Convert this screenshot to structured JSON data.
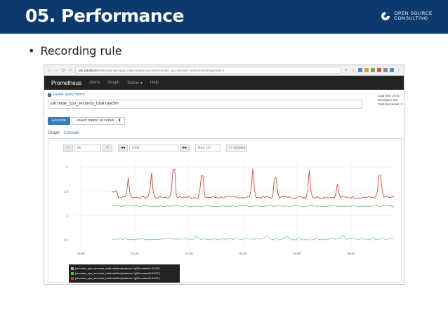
{
  "slide": {
    "title": "05. Performance",
    "logo_line1": "OPEN SOURCE",
    "logo_line2": "CONSULTING",
    "bullet_symbol": "•",
    "bullet_text": "Recording rule"
  },
  "browser": {
    "url_host": "192.168.88.26",
    "url_rest": ":9090/graph?g0.range_input=6h&g0.expr=job%3Anode_cpu_seconds_total%3Arate3m&g0.tab=0"
  },
  "navbar": {
    "brand": "Prometheus",
    "links": [
      "Alerts",
      "Graph",
      "Status ▾",
      "Help"
    ]
  },
  "query": {
    "history_label": "Enable query history",
    "expression": "job:node_cpu_seconds_total:rate3m",
    "stats": [
      "Load time: 27ms",
      "Resolution: 60s",
      "Total time series: 3"
    ],
    "execute_label": "Execute",
    "metric_select": "- insert metric at cursor -  ⬍"
  },
  "tabs": {
    "graph": "Graph",
    "console": "Console"
  },
  "controls": {
    "minus": "−",
    "range": "6h",
    "plus": "+",
    "back": "◂◂",
    "until_placeholder": "Until",
    "forward": "▸▸",
    "res_placeholder": "Res. (s)",
    "stacked_label": "☐ stacked"
  },
  "colors": {
    "red": "#c0392b",
    "green": "#5cb85c",
    "teal": "#76c7c0"
  },
  "chart_data": {
    "type": "line",
    "x_ticks": [
      "00:00",
      "01:00",
      "02:00",
      "03:00",
      "04:00",
      "05:00"
    ],
    "y_ticks": [
      "2",
      "1.5",
      "1",
      "0.5"
    ],
    "ylim": [
      0.3,
      2.15
    ],
    "series": [
      {
        "name": "job:node_cpu_seconds_total:rate3m{instance=\"yj26-cvstest2:9100\"}",
        "color": "#c0392b",
        "base": 1.38,
        "spikes": [
          [
            0.06,
            1.78
          ],
          [
            0.14,
            1.88
          ],
          [
            0.22,
            1.95
          ],
          [
            0.32,
            1.82
          ],
          [
            0.5,
            1.97
          ],
          [
            0.58,
            1.78
          ],
          [
            0.7,
            1.93
          ],
          [
            0.8,
            1.65
          ],
          [
            0.95,
            1.84
          ]
        ]
      },
      {
        "name": "job:node_cpu_seconds_total:rate3m{instance=\"yj26-cvstest3:9100\"}",
        "color": "#5cb85c",
        "base": 1.2,
        "spikes": []
      },
      {
        "name": "job:node_cpu_seconds_total:rate3m{instance=\"yj26-cvstest1:9100\"}",
        "color": "#76c7c0",
        "base": 0.52,
        "spikes": [
          [
            0.3,
            0.6
          ],
          [
            0.55,
            0.58
          ],
          [
            0.62,
            0.57
          ],
          [
            0.82,
            0.59
          ]
        ]
      }
    ],
    "legend": [
      {
        "label": "job:node_cpu_seconds_total:rate3m{instance=\"yj26-cvstest1:9100\"}",
        "color": "#76c7c0"
      },
      {
        "label": "job:node_cpu_seconds_total:rate3m{instance=\"yj26-cvstest3:9100\"}",
        "color": "#5cb85c"
      },
      {
        "label": "job:node_cpu_seconds_total:rate3m{instance=\"yj26-cvstest2:9100\"}",
        "color": "#c0392b"
      }
    ],
    "grid": true,
    "legend_position": "bottom-left"
  }
}
